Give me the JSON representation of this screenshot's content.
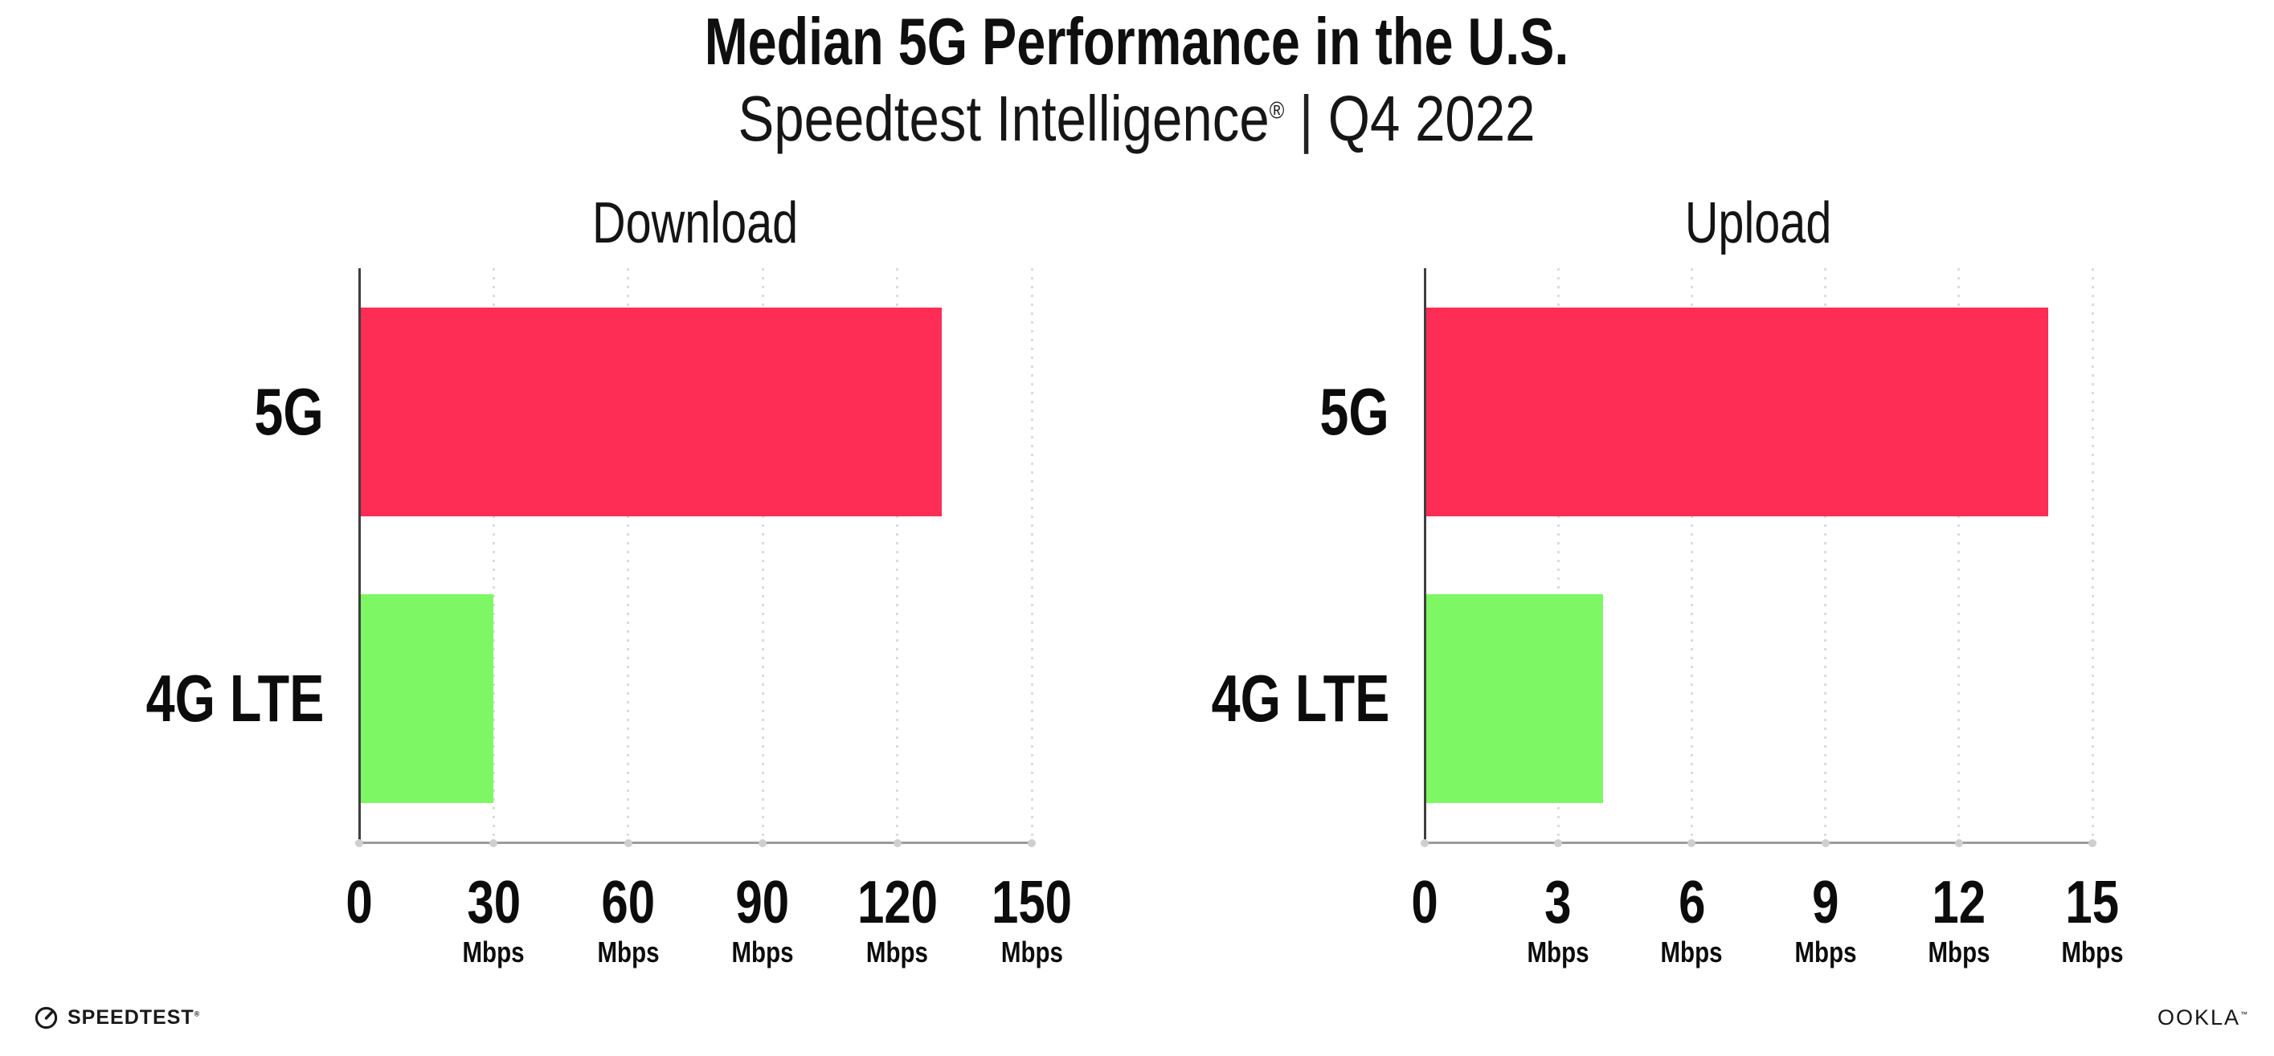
{
  "header": {
    "title": "Median 5G Performance in the U.S.",
    "subtitle_brand": "Speedtest Intelligence",
    "subtitle_reg_mark": "®",
    "subtitle_divider": "|",
    "subtitle_period": "Q4 2022"
  },
  "chart_data": [
    {
      "id": "download",
      "type": "bar",
      "orientation": "horizontal",
      "title": "Download",
      "categories": [
        "5G",
        "4G LTE"
      ],
      "values": [
        130,
        30
      ],
      "unit": "Mbps",
      "xlim": [
        0,
        150
      ],
      "xticks": [
        0,
        30,
        60,
        90,
        120,
        150
      ],
      "bar_colors": [
        "#fd2d55",
        "#7df763"
      ],
      "grid": "vertical-dotted",
      "legend": "none"
    },
    {
      "id": "upload",
      "type": "bar",
      "orientation": "horizontal",
      "title": "Upload",
      "categories": [
        "5G",
        "4G LTE"
      ],
      "values": [
        14,
        4
      ],
      "unit": "Mbps",
      "xlim": [
        0,
        15
      ],
      "xticks": [
        0,
        3,
        6,
        9,
        12,
        15
      ],
      "bar_colors": [
        "#fd2d55",
        "#7df763"
      ],
      "grid": "vertical-dotted",
      "legend": "none"
    }
  ],
  "styles": {
    "bar_red": "#fd2d55",
    "bar_green": "#7df763",
    "x_axis_color": "#9b9b9b",
    "y_axis_color": "#3f3f3f",
    "gridline_color": "#dcdcdc",
    "text_color": "#0f0f0f",
    "background": "#ffffff"
  },
  "footer": {
    "speedtest_logo_text": "SPEEDTEST",
    "speedtest_reg_mark": "®",
    "ookla_logo_text": "OOKLA",
    "ookla_tm_mark": "™"
  }
}
